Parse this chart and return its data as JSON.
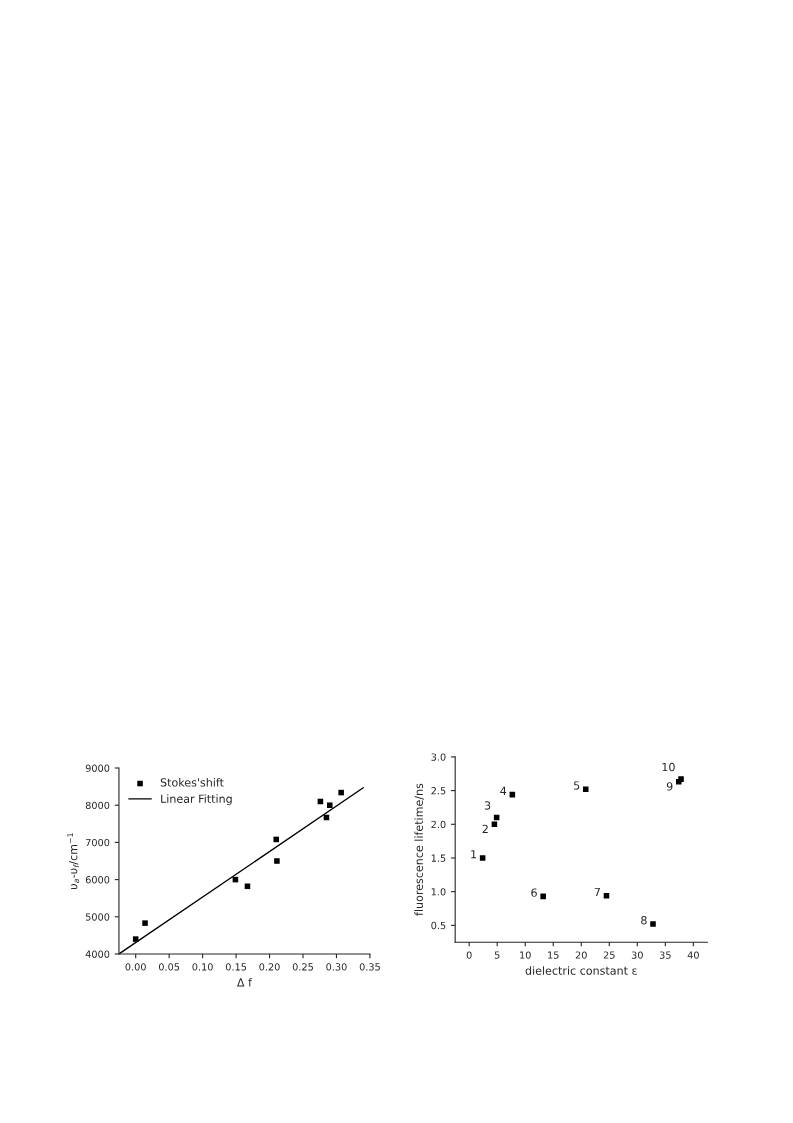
{
  "chart_data": [
    {
      "type": "scatter",
      "xlabel": "Δ f",
      "ylabel": "υ$_{a}$-υ$_{f}$/cm$^{−1}$",
      "legend": "top left",
      "grid": false,
      "xlim": [
        -0.025,
        0.35
      ],
      "ylim": [
        4000,
        9000
      ],
      "xticks": [
        {
          "value": 0,
          "label": "0.00"
        },
        0.05,
        {
          "value": 0.1,
          "label": "0.10"
        },
        0.15,
        {
          "value": 0.2,
          "label": "0.20"
        },
        0.25,
        {
          "value": 0.3,
          "label": "0.30"
        },
        0.35
      ],
      "yticks": [
        4000,
        5000,
        6000,
        7000,
        8000,
        9000
      ],
      "series": [
        {
          "name": "Stokes'shift",
          "marker": "square",
          "color": "#000000",
          "x": [
            0.0,
            0.014,
            0.149,
            0.167,
            0.21,
            0.211,
            0.276,
            0.285,
            0.29,
            0.307
          ],
          "values": [
            4400,
            4830,
            6000,
            5820,
            7080,
            6500,
            8100,
            7670,
            8000,
            8340
          ]
        },
        {
          "name": "Linear Fitting",
          "type": "line",
          "marker": "none",
          "color": "#000000",
          "x": [
            -0.025,
            0.34
          ],
          "values": [
            4000,
            8470
          ]
        }
      ]
    },
    {
      "type": "scatter",
      "xlabel": "dielectric constant ε",
      "ylabel": "fluorescence lifetime/ns",
      "grid": false,
      "marker": "square",
      "xlim": [
        -2.5,
        42.5
      ],
      "ylim": [
        0.25,
        3.0
      ],
      "xticks": [
        0,
        5,
        10,
        15,
        20,
        25,
        30,
        35,
        40
      ],
      "yticks": [
        0.5,
        {
          "value": 1,
          "label": "1.0"
        },
        1.5,
        {
          "value": 2,
          "label": "2.0"
        },
        2.5,
        {
          "value": 3,
          "label": "3.0"
        }
      ],
      "series": [
        {
          "color": "#000000",
          "x": [
            2.4,
            4.5,
            4.9,
            7.7,
            20.8,
            13.2,
            24.5,
            32.8,
            37.4,
            37.8
          ],
          "values": [
            1.5,
            2.0,
            2.1,
            2.44,
            2.52,
            0.93,
            0.94,
            0.52,
            2.63,
            2.67
          ]
        }
      ],
      "annotations": [
        {
          "text": "1",
          "x": 2.4,
          "y": 1.5
        },
        {
          "text": "2",
          "x": 4.5,
          "y": 2.0
        },
        {
          "text": "3",
          "x": 4.9,
          "y": 2.1
        },
        {
          "text": "4",
          "x": 7.7,
          "y": 2.44
        },
        {
          "text": "5",
          "x": 20.8,
          "y": 2.52
        },
        {
          "text": "6",
          "x": 13.2,
          "y": 0.93
        },
        {
          "text": "7",
          "x": 24.5,
          "y": 0.94
        },
        {
          "text": "8",
          "x": 32.8,
          "y": 0.52
        },
        {
          "text": "9",
          "x": 37.4,
          "y": 2.63
        },
        {
          "text": "10",
          "x": 37.8,
          "y": 2.67
        }
      ]
    }
  ]
}
